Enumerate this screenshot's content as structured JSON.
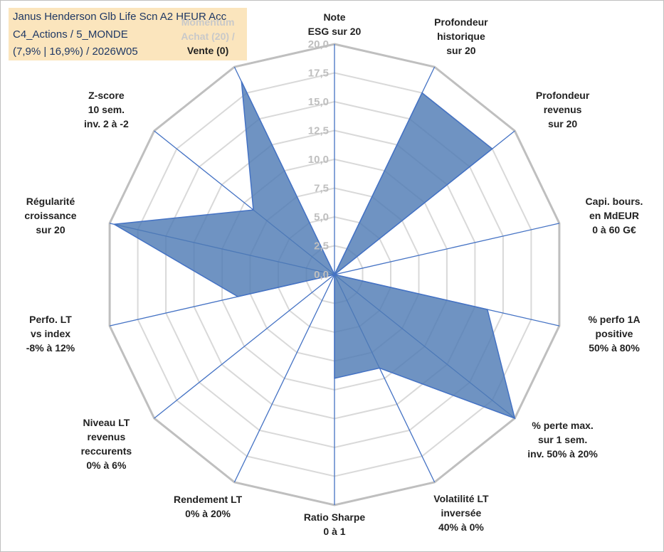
{
  "title_box": {
    "line1": "Janus Henderson Glb Life Scn A2 HEUR Acc",
    "line2": "C4_Actions / 5_MONDE",
    "line3": "(7,9% | 16,9%) / 2026W05"
  },
  "chart_data": {
    "type": "radar",
    "rmin": 0,
    "rmax": 20,
    "ticks": [
      {
        "value": 0,
        "label": "0,0"
      },
      {
        "value": 2.5,
        "label": "2,5"
      },
      {
        "value": 5,
        "label": "5,0"
      },
      {
        "value": 7.5,
        "label": "7,5"
      },
      {
        "value": 10,
        "label": "10,0"
      },
      {
        "value": 12.5,
        "label": "12,5"
      },
      {
        "value": 15,
        "label": "15,0"
      },
      {
        "value": 17.5,
        "label": "17,5"
      },
      {
        "value": 20,
        "label": "20,0"
      }
    ],
    "axes": [
      {
        "lines": [
          "Note",
          "ESG sur 20"
        ],
        "value": 0
      },
      {
        "lines": [
          "Profondeur",
          "historique",
          "sur 20"
        ],
        "value": 17.5
      },
      {
        "lines": [
          "Profondeur",
          "revenus",
          "sur 20"
        ],
        "value": 17.5
      },
      {
        "lines": [
          "Capi. bours.",
          "en MdEUR",
          "0 à 60 G€"
        ],
        "value": 0
      },
      {
        "lines": [
          "% perfo 1A",
          "positive",
          "50% à 80%"
        ],
        "value": 13.6
      },
      {
        "lines": [
          "% perte max.",
          "sur 1 sem.",
          "inv. 50% à 20%"
        ],
        "value": 20
      },
      {
        "lines": [
          "Volatilité LT",
          "inversée",
          "40% à 0%"
        ],
        "value": 9.0
      },
      {
        "lines": [
          "Ratio Sharpe",
          "0 à 1"
        ],
        "value": 9.0
      },
      {
        "lines": [
          "Rendement LT",
          "0% à 20%"
        ],
        "value": 0
      },
      {
        "lines": [
          "Niveau LT",
          "revenus",
          "reccurents",
          "0% à 6%"
        ],
        "value": 0
      },
      {
        "lines": [
          "Perfo. LT",
          "vs index",
          "-8% à 12%"
        ],
        "value": 8.6
      },
      {
        "lines": [
          "Régularité",
          "croissance",
          "sur 20"
        ],
        "value": 19.6
      },
      {
        "lines": [
          "Z-score",
          "10 sem.",
          "inv. 2 à -2"
        ],
        "value": 9.0
      },
      {
        "lines": [
          "Momentum",
          "Achat (20) /",
          "Vente (0)"
        ],
        "value": 18.6
      }
    ],
    "colors": {
      "fill": "#4f7bb5",
      "stroke": "#4472c4",
      "axis_line": "#4472c4",
      "grid_outer": "#bfbfbf",
      "grid_inner": "#d9d9d9",
      "label_text": "#222222",
      "tick_text": "#bfbfbf",
      "momentum_gray": "#c9c9c9"
    }
  }
}
